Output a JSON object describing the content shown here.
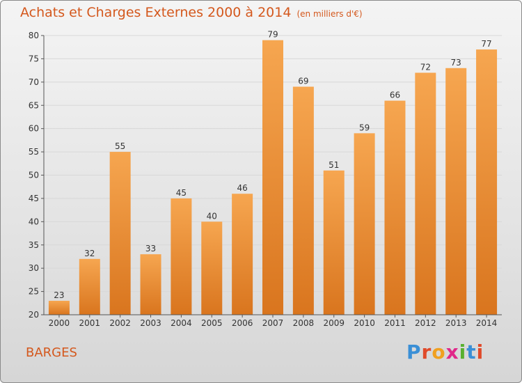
{
  "title": "Achats et Charges Externes 2000 à 2014",
  "unit_note": "(en milliers d'€)",
  "commune": "BARGES",
  "logo": {
    "letters": [
      {
        "ch": "P",
        "color": "#3a8fd6"
      },
      {
        "ch": "r",
        "color": "#e04a2a"
      },
      {
        "ch": "o",
        "color": "#f0a020"
      },
      {
        "ch": "x",
        "color": "#e0288a"
      },
      {
        "ch": "i",
        "color": "#58b030"
      },
      {
        "ch": "t",
        "color": "#3a8fd6"
      },
      {
        "ch": "i",
        "color": "#e04a2a"
      }
    ]
  },
  "colors": {
    "bar_top": "#f6a650",
    "bar_bottom": "#d9751e",
    "title": "#d4581d",
    "grid": "#d8d8d8"
  },
  "chart_data": {
    "type": "bar",
    "categories": [
      "2000",
      "2001",
      "2002",
      "2003",
      "2004",
      "2005",
      "2006",
      "2007",
      "2008",
      "2009",
      "2010",
      "2011",
      "2012",
      "2013",
      "2014"
    ],
    "values": [
      23,
      32,
      55,
      33,
      45,
      40,
      46,
      79,
      69,
      51,
      59,
      66,
      72,
      73,
      77
    ],
    "ylim": [
      20,
      80
    ],
    "yticks": [
      20,
      25,
      30,
      35,
      40,
      45,
      50,
      55,
      60,
      65,
      70,
      75,
      80
    ],
    "grid": true,
    "xlabel": "",
    "ylabel": ""
  }
}
